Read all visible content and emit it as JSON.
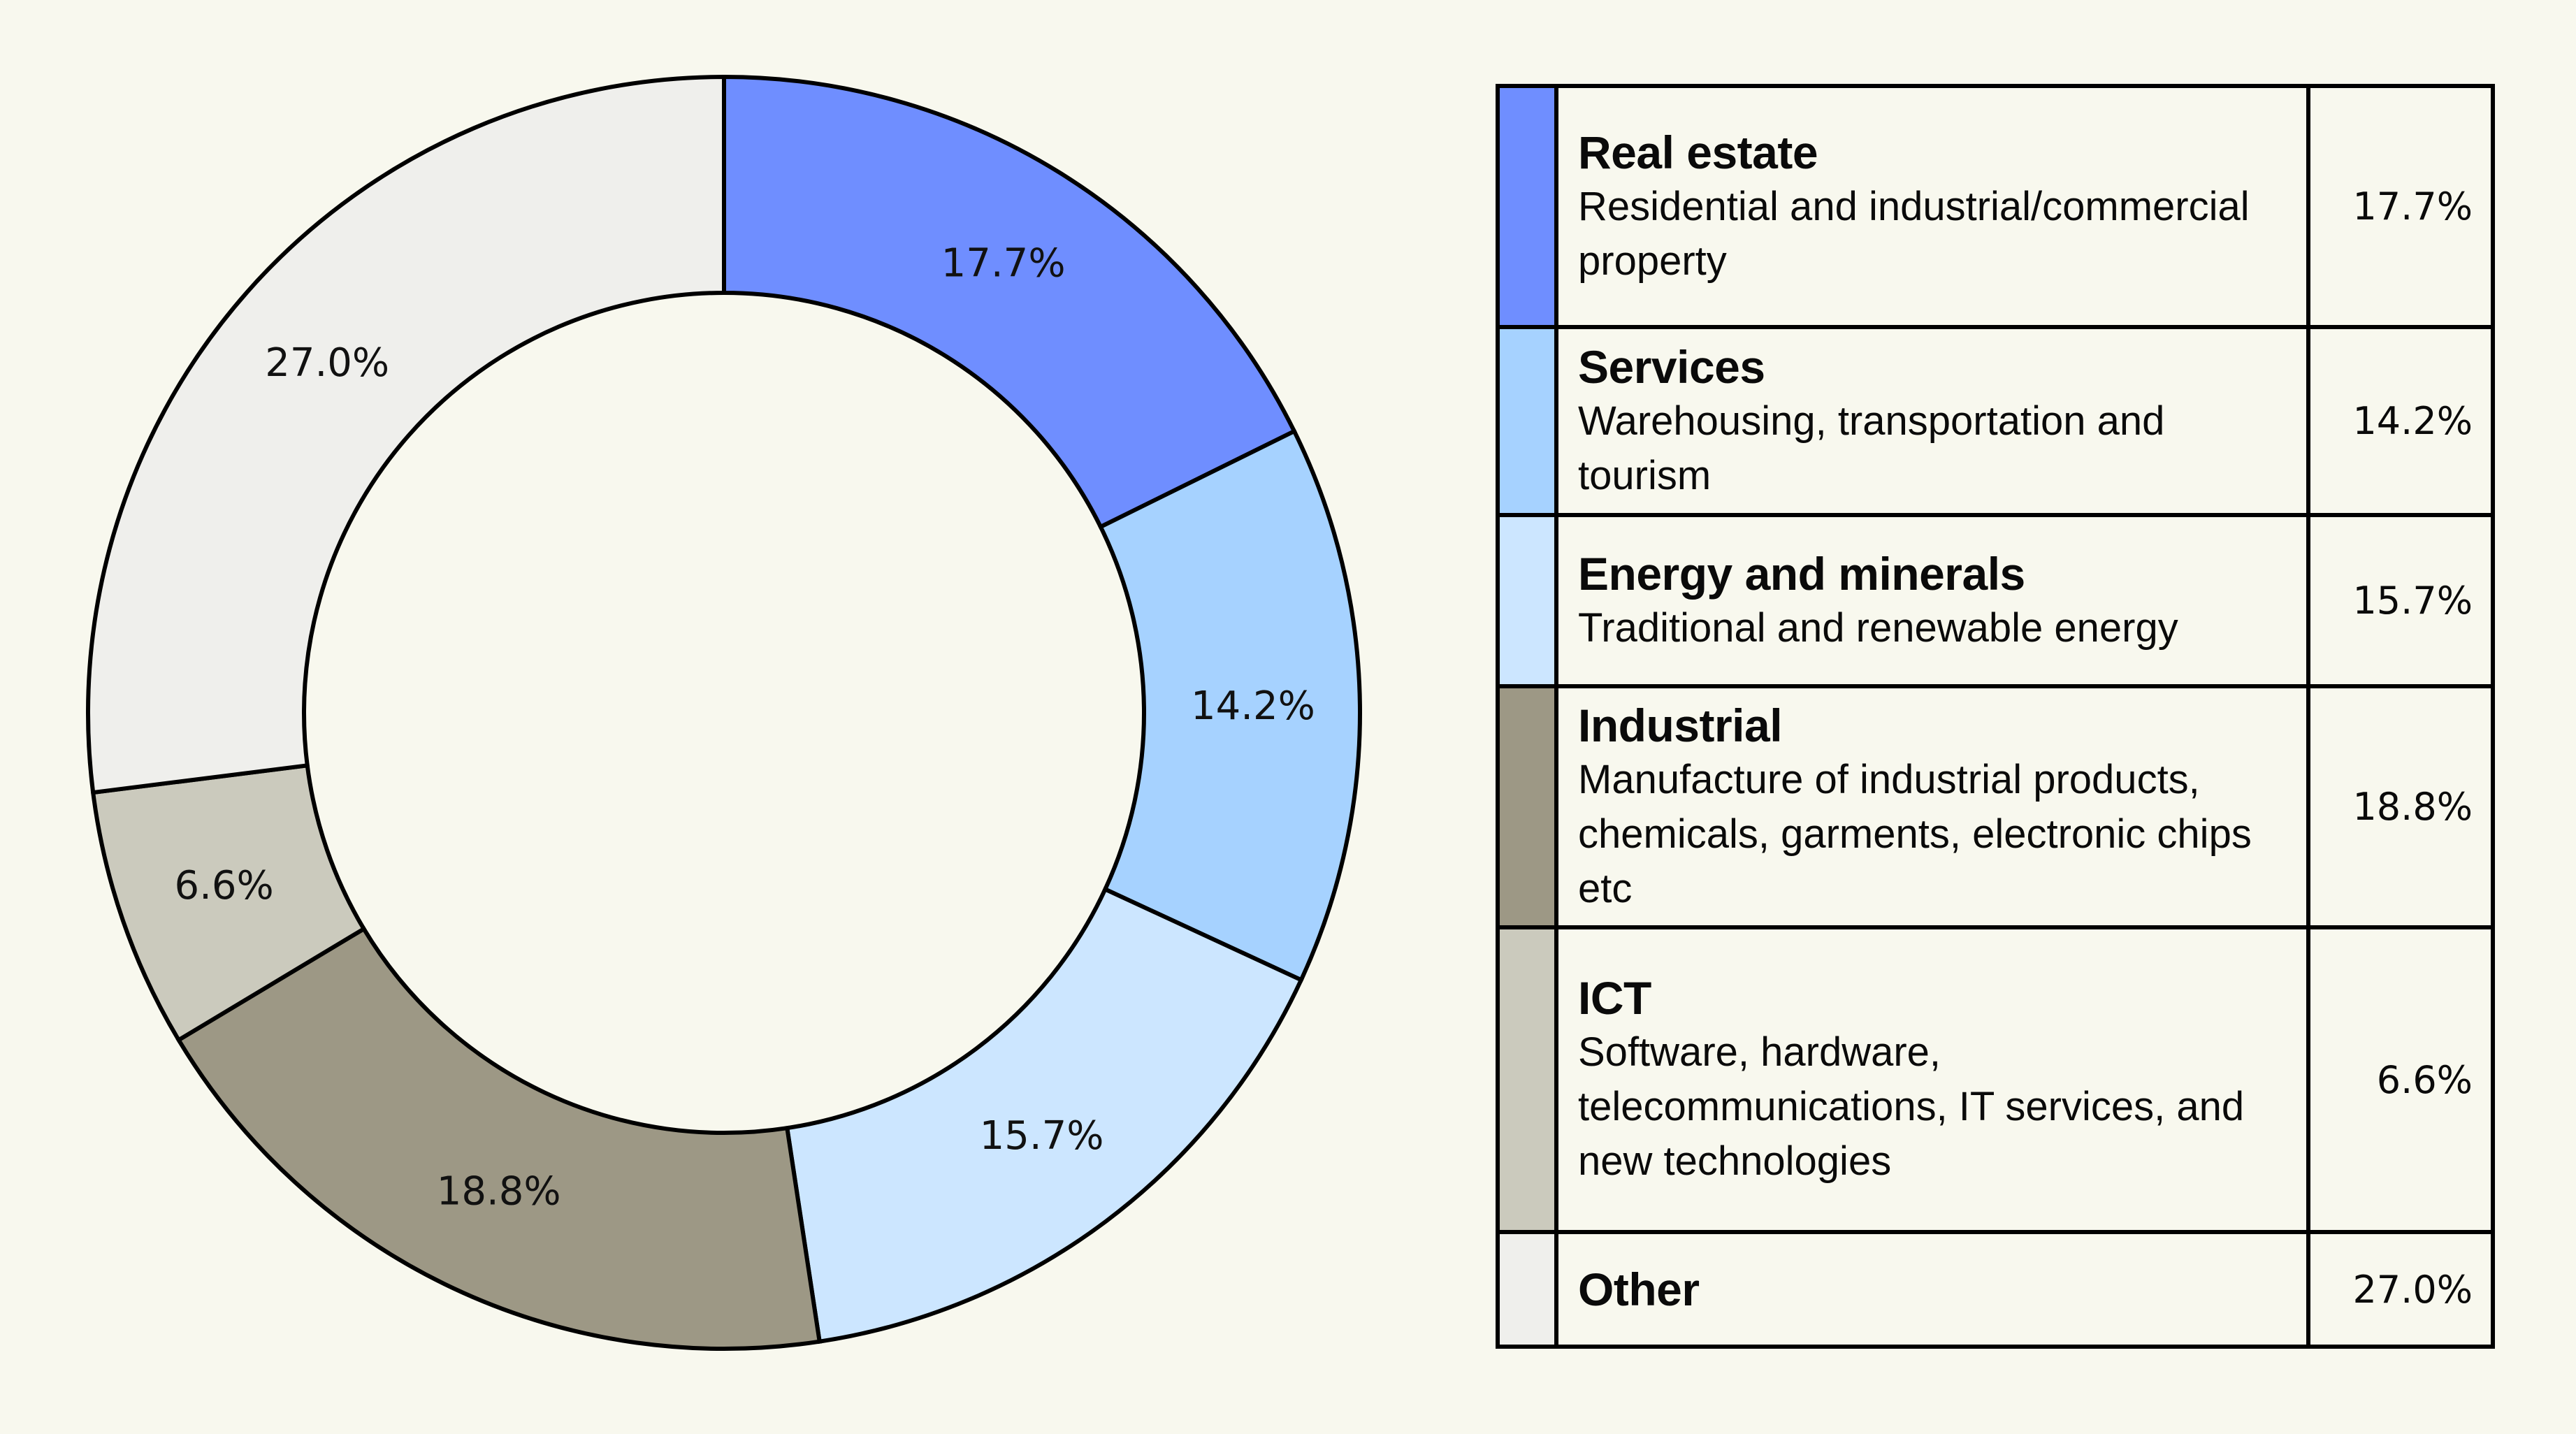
{
  "chart_data": {
    "type": "pie",
    "variant": "donut",
    "start": "12 o'clock",
    "direction": "clockwise",
    "unit": "%",
    "categories": [
      "Real estate",
      "Services",
      "Energy and minerals",
      "Industrial",
      "ICT",
      "Other"
    ],
    "values": [
      17.7,
      14.2,
      15.7,
      18.8,
      6.6,
      27.0
    ],
    "value_labels": [
      "17.7%",
      "14.2%",
      "15.7%",
      "18.8%",
      "6.6%",
      "27.0%"
    ],
    "colors": [
      "#6F8EFF",
      "#A6D2FF",
      "#CCE6FF",
      "#9D9885",
      "#CBCABD",
      "#EFEFEC"
    ],
    "legend_placement": "right"
  },
  "legend": {
    "rows": [
      {
        "title": "Real estate",
        "desc": "Residential and industrial/commercial property",
        "value": "17.7%",
        "color": "#6F8EFF"
      },
      {
        "title": "Services",
        "desc": "Warehousing, transportation and tourism",
        "value": "14.2%",
        "color": "#A6D2FF"
      },
      {
        "title": "Energy and minerals",
        "desc": "Traditional and renewable energy",
        "value": "15.7%",
        "color": "#CCE6FF"
      },
      {
        "title": "Industrial",
        "desc": "Manufacture of industrial products, chemicals, garments, electronic chips etc",
        "value": "18.8%",
        "color": "#9D9885"
      },
      {
        "title": "ICT",
        "desc": "Software, hardware, telecommunications, IT services, and new technologies",
        "value": "6.6%",
        "color": "#CBCABD"
      },
      {
        "title": "Other",
        "desc": "",
        "value": "27.0%",
        "color": "#EFEFEC"
      }
    ]
  },
  "theme": {
    "background": "#F8F8EE",
    "stroke": "#000000"
  }
}
